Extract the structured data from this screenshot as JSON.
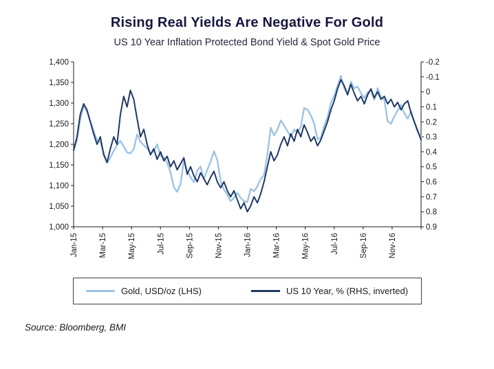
{
  "header": {
    "title": "Rising Real Yields Are Negative For Gold",
    "subtitle": "US 10 Year Inflation Protected Bond Yield & Spot Gold Price"
  },
  "source_note": "Source: Bloomberg, BMI",
  "colors": {
    "gold_line": "#9dc3e6",
    "yield_line": "#1f3864",
    "axis": "#1a1a1a"
  },
  "legend": {
    "items": [
      {
        "label": "Gold, USD/oz (LHS)",
        "color": "#9dc3e6"
      },
      {
        "label": "US 10 Year, % (RHS, inverted)",
        "color": "#1f3864"
      }
    ]
  },
  "chart_data": {
    "type": "line",
    "title": "Rising Real Yields Are Negative For Gold",
    "subtitle": "US 10 Year Inflation Protected Bond Yield & Spot Gold Price",
    "grid": false,
    "legend_position": "bottom",
    "x_tick_labels": [
      "Jan-15",
      "Mar-15",
      "May-15",
      "Jul-15",
      "Sep-15",
      "Nov-15",
      "Jan-16",
      "Mar-16",
      "May-16",
      "Jul-16",
      "Sep-16",
      "Nov-16"
    ],
    "left_axis": {
      "title": "Gold, USD/oz (LHS)",
      "min": 1000,
      "max": 1400,
      "ticks": [
        "1,400",
        "1,350",
        "1,300",
        "1,250",
        "1,200",
        "1,150",
        "1,100",
        "1,050",
        "1,000"
      ]
    },
    "right_axis": {
      "title": "US 10 Year, % (RHS, inverted)",
      "min": -0.2,
      "max": 0.9,
      "inverted": true,
      "ticks": [
        "-0.2",
        "-0.1",
        "0",
        "0.1",
        "0.2",
        "0.3",
        "0.4",
        "0.5",
        "0.6",
        "0.7",
        "0.8",
        "0.9"
      ]
    },
    "series": [
      {
        "name": "Gold, USD/oz (LHS)",
        "axis": "left",
        "color": "#9dc3e6",
        "values": [
          1185,
          1210,
          1262,
          1293,
          1280,
          1255,
          1232,
          1210,
          1205,
          1180,
          1155,
          1168,
          1184,
          1198,
          1208,
          1195,
          1180,
          1178,
          1188,
          1224,
          1206,
          1198,
          1190,
          1178,
          1183,
          1200,
          1172,
          1168,
          1155,
          1132,
          1096,
          1085,
          1104,
          1160,
          1134,
          1120,
          1108,
          1136,
          1146,
          1115,
          1138,
          1158,
          1183,
          1162,
          1110,
          1090,
          1078,
          1062,
          1070,
          1082,
          1070,
          1062,
          1060,
          1092,
          1086,
          1098,
          1116,
          1125,
          1175,
          1240,
          1222,
          1235,
          1258,
          1246,
          1232,
          1218,
          1236,
          1228,
          1242,
          1288,
          1284,
          1270,
          1250,
          1212,
          1216,
          1245,
          1265,
          1300,
          1318,
          1342,
          1366,
          1336,
          1322,
          1352,
          1336,
          1340,
          1324,
          1312,
          1326,
          1330,
          1308,
          1336,
          1316,
          1308,
          1256,
          1250,
          1268,
          1282,
          1296,
          1275,
          1262,
          1280,
          1252,
          1230,
          1218
        ]
      },
      {
        "name": "US 10 Year, % (RHS, inverted)",
        "axis": "right",
        "color": "#1f3864",
        "values": [
          0.39,
          0.3,
          0.15,
          0.08,
          0.12,
          0.2,
          0.28,
          0.35,
          0.3,
          0.42,
          0.47,
          0.38,
          0.3,
          0.35,
          0.15,
          0.03,
          0.1,
          -0.01,
          0.05,
          0.18,
          0.3,
          0.25,
          0.35,
          0.42,
          0.38,
          0.45,
          0.4,
          0.46,
          0.43,
          0.5,
          0.46,
          0.52,
          0.48,
          0.44,
          0.55,
          0.5,
          0.56,
          0.6,
          0.54,
          0.58,
          0.62,
          0.57,
          0.53,
          0.6,
          0.64,
          0.6,
          0.66,
          0.7,
          0.66,
          0.72,
          0.78,
          0.74,
          0.8,
          0.76,
          0.7,
          0.74,
          0.68,
          0.6,
          0.5,
          0.4,
          0.46,
          0.42,
          0.35,
          0.3,
          0.36,
          0.28,
          0.33,
          0.25,
          0.3,
          0.22,
          0.27,
          0.33,
          0.3,
          0.36,
          0.32,
          0.26,
          0.2,
          0.12,
          0.06,
          -0.02,
          -0.08,
          -0.04,
          0.02,
          -0.05,
          0.01,
          0.06,
          0.03,
          0.08,
          0.02,
          -0.02,
          0.04,
          0.0,
          0.05,
          0.03,
          0.08,
          0.05,
          0.1,
          0.07,
          0.12,
          0.08,
          0.06,
          0.14,
          0.2,
          0.26,
          0.32
        ]
      }
    ]
  }
}
